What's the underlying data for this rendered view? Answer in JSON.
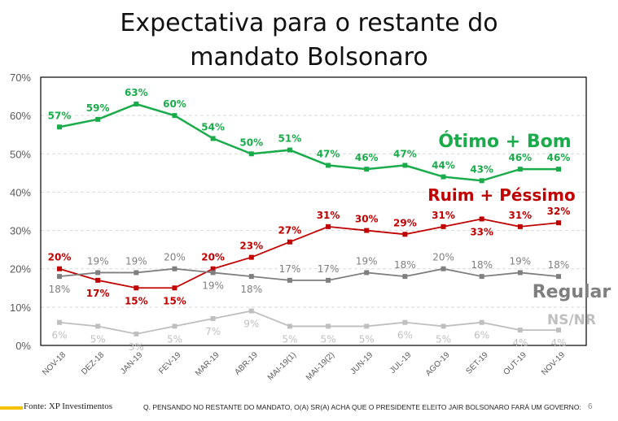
{
  "title_line1": "Expectativa para o restante do",
  "title_line2": "mandato Bolsonaro",
  "footer": {
    "source": "Fonte: XP Investimentos",
    "question": "Q. PENSANDO NO RESTANTE DO MANDATO, O(A) SR(A) ACHA QUE O PRESIDENTE ELEITO JAIR BOLSONARO FARÁ UM GOVERNO:",
    "page": "6"
  },
  "chart_data": {
    "type": "line",
    "title": "Expectativa para o restante do mandato Bolsonaro",
    "categories": [
      "NOV-18",
      "DEZ-18",
      "JAN-19",
      "FEV-19",
      "MAR-19",
      "ABR-19",
      "MAI-19(1)",
      "MAI-19(2)",
      "JUN-19",
      "JUL-19",
      "AGO-19",
      "SET-19",
      "OUT-19",
      "NOV-19"
    ],
    "ylim": [
      0,
      70
    ],
    "yticks": [
      "0%",
      "10%",
      "20%",
      "30%",
      "40%",
      "50%",
      "60%",
      "70%"
    ],
    "grid": true,
    "series": [
      {
        "name": "Ótimo + Bom",
        "color": "#1aab4b",
        "values": [
          57,
          59,
          63,
          60,
          54,
          50,
          51,
          47,
          46,
          47,
          44,
          43,
          46,
          46
        ]
      },
      {
        "name": "Ruim + Péssimo",
        "color": "#c00000",
        "values": [
          20,
          17,
          15,
          15,
          20,
          23,
          27,
          31,
          30,
          29,
          31,
          33,
          31,
          32
        ]
      },
      {
        "name": "Regular",
        "color": "#7f7f7f",
        "values": [
          18,
          19,
          19,
          20,
          19,
          18,
          17,
          17,
          19,
          18,
          20,
          18,
          19,
          18
        ]
      },
      {
        "name": "NS/NR",
        "color": "#bfbfbf",
        "values": [
          6,
          5,
          3,
          5,
          7,
          9,
          5,
          5,
          5,
          6,
          5,
          6,
          4,
          4
        ]
      }
    ]
  }
}
